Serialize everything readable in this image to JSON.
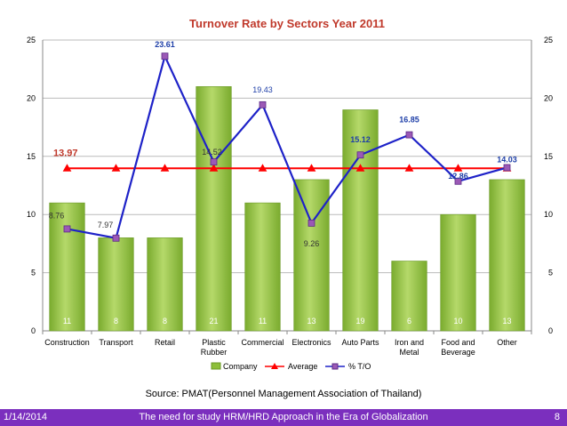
{
  "chart_data": {
    "type": "bar+line",
    "title": "Turnover Rate by Sectors Year 2011",
    "categories": [
      "Construction",
      "Transport",
      "Retail",
      "Plastic Rubber",
      "Commercial",
      "Electronics",
      "Auto Parts",
      "Iron and Metal",
      "Food and Beverage",
      "Other"
    ],
    "category_lines": [
      [
        "Construction"
      ],
      [
        "Transport"
      ],
      [
        "Retail"
      ],
      [
        "Plastic",
        "Rubber"
      ],
      [
        "Commercial"
      ],
      [
        "Electronics"
      ],
      [
        "Auto Parts"
      ],
      [
        "Iron and",
        "Metal"
      ],
      [
        "Food and",
        "Beverage"
      ],
      [
        "Other"
      ]
    ],
    "series": [
      {
        "name": "Company",
        "type": "bar",
        "color": "#8dbf3a",
        "values": [
          11,
          8,
          8,
          21,
          11,
          13,
          19,
          6,
          10,
          13
        ]
      },
      {
        "name": "Average",
        "type": "line",
        "color": "#ff0000",
        "marker": "triangle",
        "values": [
          13.97,
          13.97,
          13.97,
          13.97,
          13.97,
          13.97,
          13.97,
          13.97,
          13.97,
          13.97
        ]
      },
      {
        "name": "% T/O",
        "type": "line",
        "color": "#1e22c8",
        "marker": "square",
        "values": [
          8.76,
          7.97,
          23.61,
          14.52,
          19.43,
          9.26,
          15.12,
          16.85,
          12.86,
          14.03
        ]
      }
    ],
    "to_labels": [
      "8.76",
      "7.97",
      "23.61",
      "14.52",
      "19.43",
      "9.26",
      "15.12",
      "16.85",
      "12.86",
      "14.03"
    ],
    "average_label": "13.97",
    "ylim": [
      0,
      25
    ],
    "yticks": [
      0,
      5,
      10,
      15,
      20,
      25
    ],
    "y2ticks": [
      0,
      5,
      10,
      15,
      20,
      25
    ],
    "grid": true,
    "legend_position": "bottom",
    "legend": [
      "Company",
      "Average",
      "% T/O"
    ]
  },
  "source": "Source: PMAT(Personnel Management Association of Thailand)",
  "footer": {
    "date": "1/14/2014",
    "title": "The need for study HRM/HRD Approach in the Era of Globalization",
    "page": "8"
  }
}
